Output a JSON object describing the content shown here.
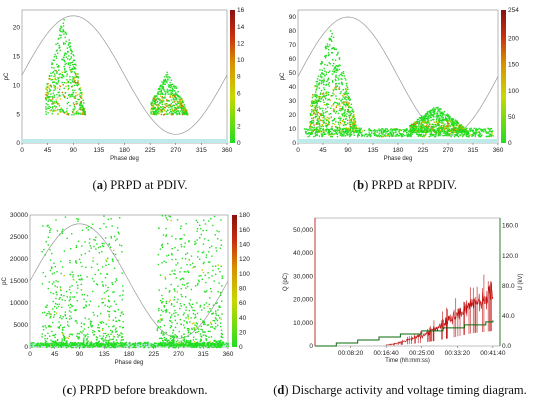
{
  "captions": [
    {
      "letter": "a",
      "text": "PRPD at PDIV."
    },
    {
      "letter": "b",
      "text": "PRPD at RPDIV."
    },
    {
      "letter": "c",
      "text": "PRPD before breakdown."
    },
    {
      "letter": "d",
      "text": "Discharge activity and voltage timing diagram."
    }
  ],
  "colors": {
    "green": "#22dd22",
    "yellow": "#cccc00",
    "orange": "#cc7700",
    "red": "#c01010",
    "darkgreen": "#0a6a0a",
    "sine": "#999999",
    "baseline": "#bfeaea"
  },
  "chart_data": [
    {
      "id": "a",
      "type": "scatter",
      "xlabel": "Phase deg",
      "ylabel": "pC",
      "xlim": [
        0,
        360
      ],
      "ylim": [
        0,
        23
      ],
      "xticks": [
        0,
        45,
        90,
        135,
        180,
        225,
        270,
        315,
        360
      ],
      "yticks": [
        0,
        5,
        10,
        15,
        20
      ],
      "colorbar": {
        "min": 0,
        "max": 16,
        "ticks": [
          0,
          2,
          4,
          6,
          8,
          10,
          12,
          14,
          16
        ]
      },
      "sine_amplitude": [
        1.5,
        22
      ],
      "clusters": [
        {
          "phase_range": [
            40,
            110
          ],
          "peak_phase": 85,
          "pc_range": [
            5,
            22
          ]
        },
        {
          "phase_range": [
            225,
            290
          ],
          "peak_phase": 262,
          "pc_range": [
            5,
            12.5
          ]
        }
      ]
    },
    {
      "id": "b",
      "type": "scatter",
      "xlabel": "Phase deg",
      "ylabel": "pC",
      "xlim": [
        0,
        360
      ],
      "ylim": [
        0,
        95
      ],
      "xticks": [
        0,
        45,
        90,
        135,
        180,
        225,
        270,
        315,
        360
      ],
      "yticks": [
        0,
        10,
        20,
        30,
        40,
        50,
        60,
        70,
        80,
        90
      ],
      "colorbar": {
        "min": 0,
        "max": 254,
        "ticks": [
          0,
          50,
          100,
          150,
          200,
          254
        ]
      },
      "sine_amplitude": [
        5,
        90
      ],
      "clusters": [
        {
          "phase_range": [
            20,
            105
          ],
          "peak_phase": 70,
          "pc_range": [
            8,
            82
          ]
        },
        {
          "phase_range": [
            200,
            305
          ],
          "peak_phase": 250,
          "pc_range": [
            8,
            27
          ]
        }
      ]
    },
    {
      "id": "c",
      "type": "scatter",
      "xlabel": "Phase deg",
      "ylabel": "pC",
      "xlim": [
        0,
        360
      ],
      "ylim": [
        0,
        30000
      ],
      "xticks": [
        0,
        45,
        90,
        135,
        180,
        225,
        270,
        315,
        360
      ],
      "yticks": [
        0,
        5000,
        10000,
        15000,
        20000,
        25000,
        30000
      ],
      "colorbar": {
        "min": 0,
        "max": 180,
        "ticks": [
          0,
          20,
          40,
          60,
          80,
          100,
          120,
          140,
          160,
          180
        ]
      },
      "sine_amplitude": [
        2000,
        28000
      ],
      "clusters": [
        {
          "phase_range": [
            20,
            170
          ],
          "peak_phase": 95,
          "pc_range": [
            500,
            30000
          ]
        },
        {
          "phase_range": [
            230,
            350
          ],
          "peak_phase": 290,
          "pc_range": [
            500,
            30000
          ]
        }
      ]
    },
    {
      "id": "d",
      "type": "line",
      "xlabel": "Time (hh:mm:ss)",
      "ylabel": "Q (pC)",
      "ylabel_right": "U (kV)",
      "xticks": [
        "00:08:20",
        "00:16:40",
        "00:25:00",
        "00:33:20",
        "00:41:40"
      ],
      "x_seconds": [
        500,
        1000,
        1500,
        2000,
        2500
      ],
      "xlim": [
        0,
        2600
      ],
      "ylim": [
        0,
        55000
      ],
      "yticks": [
        "0",
        "10,000",
        "20,000",
        "30,000",
        "40,000",
        "50,000"
      ],
      "ylim_right": [
        0,
        170
      ],
      "yticks_right": [
        "0.0",
        "40.0",
        "80.0",
        "120.0",
        "160.0"
      ],
      "series": [
        {
          "name": "Q",
          "color": "#c01010",
          "x": [
            1000,
            1100,
            1200,
            1300,
            1400,
            1500,
            1600,
            1700,
            1800,
            1900,
            2000,
            2100,
            2200,
            2300,
            2400,
            2500
          ],
          "y": [
            500,
            800,
            1500,
            2500,
            3500,
            4500,
            6000,
            7500,
            9500,
            11500,
            13500,
            16000,
            18000,
            19500,
            20500,
            21500
          ]
        },
        {
          "name": "U",
          "color": "#0a6a0a",
          "x": [
            0,
            300,
            600,
            900,
            1200,
            1500,
            1800,
            2100,
            2400,
            2500
          ],
          "y": [
            0,
            4,
            8,
            12,
            16,
            20,
            24,
            28,
            32,
            34
          ]
        }
      ]
    }
  ]
}
